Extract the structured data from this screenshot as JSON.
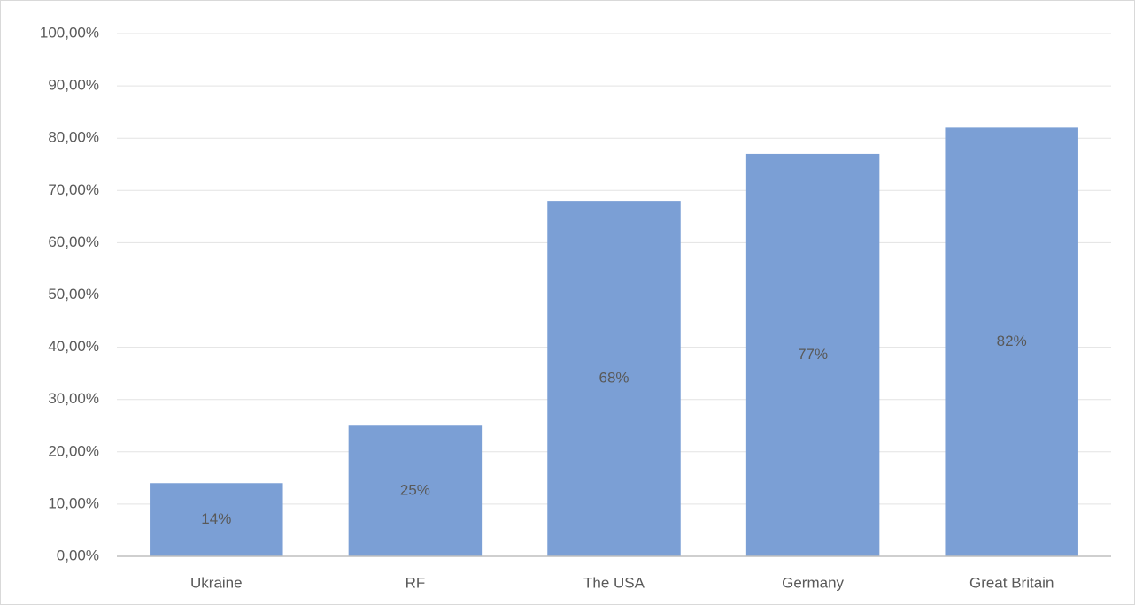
{
  "chart_data": {
    "type": "bar",
    "categories": [
      "Ukraine",
      "RF",
      "The USA",
      "Germany",
      "Great Britain"
    ],
    "values": [
      14,
      25,
      68,
      77,
      82
    ],
    "value_labels": [
      "14%",
      "25%",
      "68%",
      "77%",
      "82%"
    ],
    "color": "#7b9fd5",
    "ylim": [
      0,
      100
    ],
    "yticks": [
      {
        "value": 0,
        "label": "0,00%"
      },
      {
        "value": 10,
        "label": "10,00%"
      },
      {
        "value": 20,
        "label": "20,00%"
      },
      {
        "value": 30,
        "label": "30,00%"
      },
      {
        "value": 40,
        "label": "40,00%"
      },
      {
        "value": 50,
        "label": "50,00%"
      },
      {
        "value": 60,
        "label": "60,00%"
      },
      {
        "value": 70,
        "label": "70,00%"
      },
      {
        "value": 80,
        "label": "80,00%"
      },
      {
        "value": 90,
        "label": "90,00%"
      },
      {
        "value": 100,
        "label": "100,00%"
      }
    ],
    "grid": true
  }
}
